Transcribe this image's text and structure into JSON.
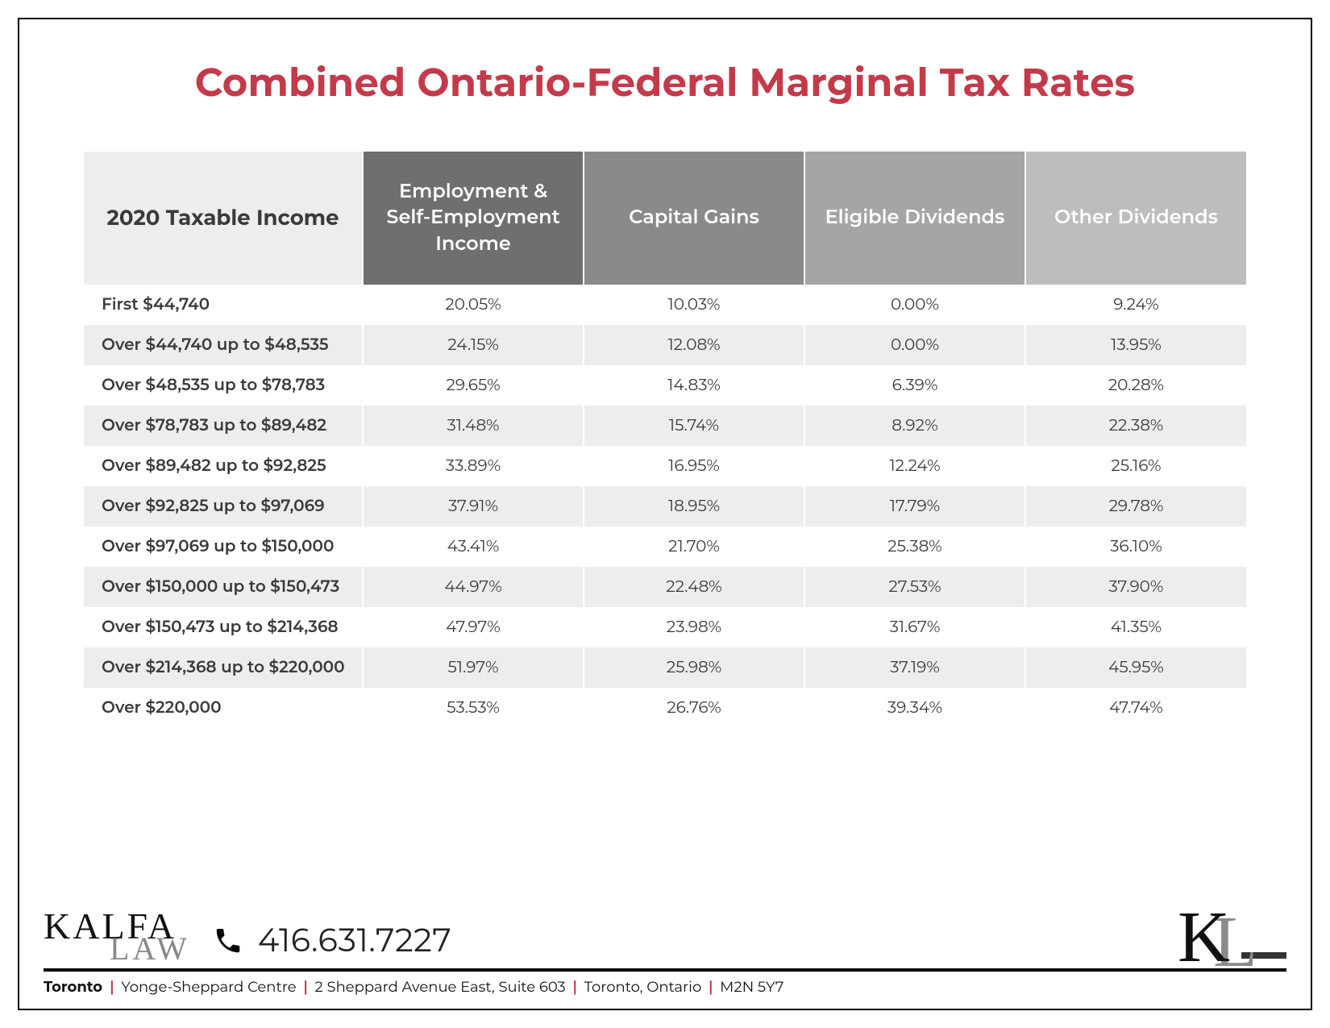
{
  "title": "Combined Ontario-Federal Marginal Tax Rates",
  "table": {
    "type": "table",
    "columns": [
      "2020\nTaxable\nIncome",
      "Employment & Self-Employment Income",
      "Capital Gains",
      "Eligible Dividends",
      "Other Dividends"
    ],
    "column_widths_pct": [
      24,
      19,
      19,
      19,
      19
    ],
    "header_bg_colors": [
      "#ededed",
      "#6f6f6f",
      "#8a8a8a",
      "#a5a5a5",
      "#bdbdbd"
    ],
    "header_text_colors": [
      "#3a3a3a",
      "#ffffff",
      "#ffffff",
      "#ffffff",
      "#ffffff"
    ],
    "header_fontsize_pt": 18,
    "body_fontsize_pt": 15,
    "row_bg_odd": "#ffffff",
    "row_bg_even": "#ededed",
    "cell_border_color": "#ffffff",
    "brackets": [
      "First $44,740",
      "Over $44,740 up to $48,535",
      "Over $48,535 up to $78,783",
      "Over $78,783 up to $89,482",
      "Over $89,482 up to $92,825",
      "Over $92,825 up to $97,069",
      "Over $97,069 up to $150,000",
      "Over $150,000 up to $150,473",
      "Over $150,473 up to $214,368",
      "Over $214,368 up to $220,000",
      "Over $220,000"
    ],
    "rows": [
      [
        "20.05%",
        "10.03%",
        "0.00%",
        "9.24%"
      ],
      [
        "24.15%",
        "12.08%",
        "0.00%",
        "13.95%"
      ],
      [
        "29.65%",
        "14.83%",
        "6.39%",
        "20.28%"
      ],
      [
        "31.48%",
        "15.74%",
        "8.92%",
        "22.38%"
      ],
      [
        "33.89%",
        "16.95%",
        "12.24%",
        "25.16%"
      ],
      [
        "37.91%",
        "18.95%",
        "17.79%",
        "29.78%"
      ],
      [
        "43.41%",
        "21.70%",
        "25.38%",
        "36.10%"
      ],
      [
        "44.97%",
        "22.48%",
        "27.53%",
        "37.90%"
      ],
      [
        "47.97%",
        "23.98%",
        "31.67%",
        "41.35%"
      ],
      [
        "51.97%",
        "25.98%",
        "37.19%",
        "45.95%"
      ],
      [
        "53.53%",
        "26.76%",
        "39.34%",
        "47.74%"
      ]
    ]
  },
  "footer": {
    "brand_line1": "KALFA",
    "brand_line2": "LAW",
    "phone": "416.631.7227",
    "monogram": "KL",
    "address": {
      "city": "Toronto",
      "parts": [
        "Yonge-Sheppard Centre",
        "2 Sheppard Avenue East, Suite 603",
        "Toronto, Ontario",
        "M2N 5Y7"
      ]
    },
    "separator_color": "#c33a4a",
    "rule_color": "#000000"
  },
  "colors": {
    "title": "#c33a4a",
    "page_border": "#000000",
    "background": "#ffffff"
  }
}
